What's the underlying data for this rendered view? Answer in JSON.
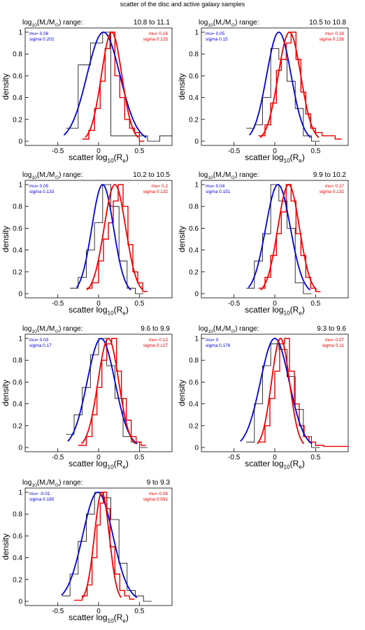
{
  "figure": {
    "title": "scatter of the disc and active galaxy samples",
    "range_prefix": "log",
    "range_prefix_sub": "10",
    "range_mass": "(M",
    "range_mass_sub": "*",
    "range_sun": "/M",
    "range_sun_sub": "⊙",
    "range_suffix": ") range:",
    "xlabel_prefix": "scatter log",
    "xlabel_sub": "10",
    "xlabel_mid": "(R",
    "xlabel_sub2": "e",
    "xlabel_suffix": ")",
    "ylabel": "density",
    "mu_label": "mu=",
    "sigma_label": "sigma",
    "colors": {
      "blue": "#0000dd",
      "red": "#ee0000",
      "hist": "#000000"
    }
  },
  "chart_data": [
    {
      "type": "line",
      "range": "10.8 to 11.1",
      "blue": {
        "mu": "0.06",
        "sigma": "0.202"
      },
      "red": {
        "mu": "0.16",
        "sigma": "0.125"
      },
      "xlim": [
        -0.9,
        0.9
      ],
      "ylim": [
        0,
        1
      ],
      "xticks": [
        "-0.5",
        "0",
        "0.5"
      ],
      "yticks": [
        "0",
        "0.2",
        "0.4",
        "0.6",
        "0.8",
        "1"
      ],
      "black_hist": [
        [
          -0.4,
          0.12
        ],
        [
          -0.25,
          0.7
        ],
        [
          -0.1,
          0.9
        ],
        [
          0.05,
          1.0
        ],
        [
          0.15,
          0.05
        ],
        [
          0.3,
          0.05
        ],
        [
          0.45,
          0.05
        ],
        [
          0.6,
          0.0
        ],
        [
          0.75,
          0.05
        ],
        [
          0.9,
          0.05
        ]
      ],
      "red_hist": [
        [
          -0.2,
          0.02
        ],
        [
          -0.12,
          0.1
        ],
        [
          -0.05,
          0.3
        ],
        [
          0.02,
          0.55
        ],
        [
          0.08,
          0.85
        ],
        [
          0.14,
          1.0
        ],
        [
          0.2,
          0.6
        ],
        [
          0.26,
          0.4
        ],
        [
          0.32,
          0.2
        ],
        [
          0.38,
          0.12
        ],
        [
          0.44,
          0.08
        ],
        [
          0.5,
          0.0
        ]
      ]
    },
    {
      "type": "line",
      "range": "10.5 to 10.8",
      "blue": {
        "mu": "0.05",
        "sigma": "0.15"
      },
      "red": {
        "mu": "0.18",
        "sigma": "0.138"
      },
      "xlim": [
        -0.9,
        0.9
      ],
      "ylim": [
        0,
        1
      ],
      "xticks": [
        "-0.5",
        "0",
        "0.5"
      ],
      "yticks": [
        "0",
        "0.2",
        "0.4",
        "0.6",
        "0.8",
        "1"
      ],
      "black_hist": [
        [
          -0.35,
          0.12
        ],
        [
          -0.25,
          0.15
        ],
        [
          -0.15,
          0.4
        ],
        [
          -0.05,
          0.85
        ],
        [
          0.05,
          0.75
        ],
        [
          0.15,
          0.55
        ],
        [
          0.25,
          0.3
        ],
        [
          0.35,
          0.05
        ],
        [
          0.45,
          0.0
        ]
      ],
      "red_hist": [
        [
          -0.2,
          0.05
        ],
        [
          -0.12,
          0.15
        ],
        [
          -0.05,
          0.35
        ],
        [
          0.02,
          0.65
        ],
        [
          0.08,
          0.75
        ],
        [
          0.14,
          0.9
        ],
        [
          0.2,
          1.0
        ],
        [
          0.26,
          0.75
        ],
        [
          0.32,
          0.45
        ],
        [
          0.38,
          0.25
        ],
        [
          0.44,
          0.12
        ],
        [
          0.5,
          0.08
        ],
        [
          0.58,
          0.05
        ],
        [
          0.66,
          0.05
        ],
        [
          0.74,
          0.02
        ]
      ]
    },
    {
      "type": "line",
      "range": "10.2 to 10.5",
      "blue": {
        "mu": "0.05",
        "sigma": "0.133"
      },
      "red": {
        "mu": "0.2",
        "sigma": "0.132"
      },
      "xlim": [
        -0.9,
        0.9
      ],
      "ylim": [
        0,
        1
      ],
      "xticks": [
        "-0.5",
        "0",
        "0.5"
      ],
      "yticks": [
        "0",
        "0.2",
        "0.4",
        "0.6",
        "0.8",
        "1"
      ],
      "black_hist": [
        [
          -0.35,
          0.05
        ],
        [
          -0.25,
          0.15
        ],
        [
          -0.15,
          0.4
        ],
        [
          -0.05,
          0.65
        ],
        [
          0.05,
          1.0
        ],
        [
          0.15,
          0.8
        ],
        [
          0.25,
          0.3
        ],
        [
          0.35,
          0.05
        ],
        [
          0.45,
          0.0
        ]
      ],
      "red_hist": [
        [
          -0.15,
          0.05
        ],
        [
          -0.08,
          0.1
        ],
        [
          0.0,
          0.3
        ],
        [
          0.06,
          0.5
        ],
        [
          0.12,
          0.65
        ],
        [
          0.18,
          0.85
        ],
        [
          0.24,
          1.0
        ],
        [
          0.3,
          0.8
        ],
        [
          0.36,
          0.45
        ],
        [
          0.42,
          0.2
        ],
        [
          0.48,
          0.1
        ],
        [
          0.54,
          0.02
        ]
      ]
    },
    {
      "type": "line",
      "range": "9.9 to 10.2",
      "blue": {
        "mu": "0.04",
        "sigma": "0.151"
      },
      "red": {
        "mu": "0.17",
        "sigma": "0.132"
      },
      "xlim": [
        -0.9,
        0.9
      ],
      "ylim": [
        0,
        1
      ],
      "xticks": [
        "-0.5",
        "0",
        "0.5"
      ],
      "yticks": [
        "0",
        "0.2",
        "0.4",
        "0.6",
        "0.8",
        "1"
      ],
      "black_hist": [
        [
          -0.35,
          0.05
        ],
        [
          -0.25,
          0.3
        ],
        [
          -0.15,
          0.55
        ],
        [
          -0.05,
          1.0
        ],
        [
          0.05,
          0.85
        ],
        [
          0.15,
          0.6
        ],
        [
          0.25,
          0.1
        ],
        [
          0.35,
          0.0
        ]
      ],
      "red_hist": [
        [
          -0.2,
          0.05
        ],
        [
          -0.12,
          0.15
        ],
        [
          -0.05,
          0.35
        ],
        [
          0.02,
          0.55
        ],
        [
          0.08,
          0.75
        ],
        [
          0.14,
          1.0
        ],
        [
          0.2,
          0.85
        ],
        [
          0.26,
          0.55
        ],
        [
          0.32,
          0.35
        ],
        [
          0.38,
          0.15
        ],
        [
          0.44,
          0.05
        ],
        [
          0.5,
          0.02
        ]
      ]
    },
    {
      "type": "line",
      "range": "9.6 to 9.9",
      "blue": {
        "mu": "0.03",
        "sigma": "0.17"
      },
      "red": {
        "mu": "0.12",
        "sigma": "0.127"
      },
      "xlim": [
        -0.9,
        0.9
      ],
      "ylim": [
        0,
        1
      ],
      "xticks": [
        "-0.5",
        "0",
        "0.5"
      ],
      "yticks": [
        "0",
        "0.2",
        "0.4",
        "0.6",
        "0.8",
        "1"
      ],
      "black_hist": [
        [
          -0.4,
          0.12
        ],
        [
          -0.3,
          0.3
        ],
        [
          -0.2,
          0.55
        ],
        [
          -0.1,
          0.85
        ],
        [
          0.0,
          1.0
        ],
        [
          0.1,
          0.75
        ],
        [
          0.2,
          0.45
        ],
        [
          0.3,
          0.1
        ],
        [
          0.4,
          0.05
        ],
        [
          0.5,
          0.0
        ]
      ],
      "red_hist": [
        [
          -0.25,
          0.02
        ],
        [
          -0.15,
          0.1
        ],
        [
          -0.08,
          0.3
        ],
        [
          -0.02,
          0.55
        ],
        [
          0.04,
          0.8
        ],
        [
          0.1,
          0.95
        ],
        [
          0.16,
          1.0
        ],
        [
          0.22,
          0.7
        ],
        [
          0.28,
          0.45
        ],
        [
          0.34,
          0.25
        ],
        [
          0.4,
          0.1
        ],
        [
          0.46,
          0.05
        ],
        [
          0.52,
          0.02
        ]
      ]
    },
    {
      "type": "line",
      "range": "9.3 to 9.6",
      "blue": {
        "mu": "0",
        "sigma": "0.176"
      },
      "red": {
        "mu": "0.07",
        "sigma": "0.11"
      },
      "xlim": [
        -0.9,
        0.9
      ],
      "ylim": [
        0,
        1
      ],
      "xticks": [
        "-0.5",
        "0",
        "0.5"
      ],
      "yticks": [
        "0",
        "0.2",
        "0.4",
        "0.6",
        "0.8",
        "1"
      ],
      "black_hist": [
        [
          -0.35,
          0.05
        ],
        [
          -0.25,
          0.4
        ],
        [
          -0.15,
          0.75
        ],
        [
          -0.05,
          0.95
        ],
        [
          0.05,
          0.9
        ],
        [
          0.15,
          0.65
        ],
        [
          0.25,
          0.35
        ],
        [
          0.35,
          0.1
        ],
        [
          0.45,
          0.0
        ]
      ],
      "red_hist": [
        [
          -0.2,
          0.05
        ],
        [
          -0.12,
          0.2
        ],
        [
          -0.06,
          0.45
        ],
        [
          0.0,
          0.7
        ],
        [
          0.06,
          0.95
        ],
        [
          0.12,
          1.0
        ],
        [
          0.18,
          0.7
        ],
        [
          0.24,
          0.4
        ],
        [
          0.3,
          0.2
        ],
        [
          0.36,
          0.1
        ],
        [
          0.42,
          0.05
        ],
        [
          0.5,
          0.02
        ],
        [
          0.6,
          0.01
        ],
        [
          0.8,
          0.01
        ]
      ]
    },
    {
      "type": "line",
      "range": "9 to 9.3",
      "blue": {
        "mu": "-0.01",
        "sigma": "0.185"
      },
      "red": {
        "mu": "0.04",
        "sigma": "0.091"
      },
      "xlim": [
        -0.9,
        0.9
      ],
      "ylim": [
        0,
        1
      ],
      "xticks": [
        "-0.5",
        "0",
        "0.5"
      ],
      "yticks": [
        "0",
        "0.2",
        "0.4",
        "0.6",
        "0.8",
        "1"
      ],
      "black_hist": [
        [
          -0.45,
          0.05
        ],
        [
          -0.35,
          0.25
        ],
        [
          -0.25,
          0.55
        ],
        [
          -0.15,
          0.8
        ],
        [
          -0.05,
          1.0
        ],
        [
          0.05,
          0.95
        ],
        [
          0.15,
          0.75
        ],
        [
          0.25,
          0.35
        ],
        [
          0.35,
          0.1
        ],
        [
          0.45,
          0.05
        ],
        [
          0.55,
          0.0
        ]
      ],
      "red_hist": [
        [
          -0.3,
          0.01
        ],
        [
          -0.2,
          0.05
        ],
        [
          -0.14,
          0.15
        ],
        [
          -0.08,
          0.4
        ],
        [
          -0.02,
          0.7
        ],
        [
          0.02,
          0.9
        ],
        [
          0.06,
          1.0
        ],
        [
          0.1,
          0.85
        ],
        [
          0.14,
          0.5
        ],
        [
          0.2,
          0.25
        ],
        [
          0.26,
          0.1
        ],
        [
          0.32,
          0.05
        ],
        [
          0.38,
          0.02
        ]
      ]
    }
  ]
}
